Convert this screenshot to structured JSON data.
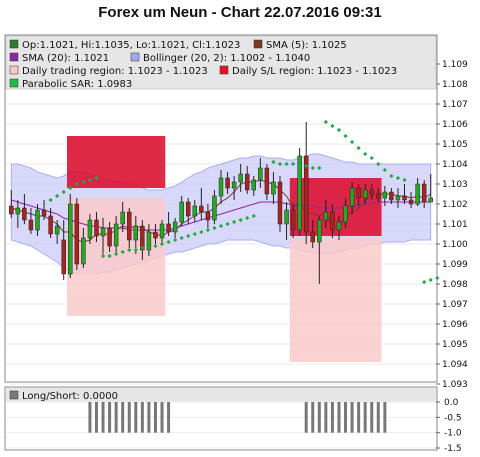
{
  "title": "Forex um Neun - Chart 22.07.2016 09:31",
  "legend": [
    {
      "text": "Op:1.1021, Hi:1.1035, Lo:1.1021, Cl:1.1023",
      "swatch": "#2e7d32"
    },
    {
      "text": "SMA (5): 1.1025",
      "swatch": "#7b3a22"
    },
    {
      "text": "SMA (20): 1.1021",
      "swatch": "#8e24aa"
    },
    {
      "text": "Bollinger (20, 2): 1.1002 - 1.1040",
      "swatch": "#9fa8f0"
    },
    {
      "text": "Daily trading region: 1.1023 - 1.1023",
      "swatch": "#f8c8c8"
    },
    {
      "text": "Daily S/L region: 1.1023 - 1.1023",
      "swatch": "#ee1122"
    },
    {
      "text": "Parabolic SAR: 1.0983",
      "swatch": "#22bb44"
    }
  ],
  "lower_panel": {
    "label": "Long/Short: 0.0000",
    "swatch": "#777777"
  },
  "colors": {
    "up": "#22aa22",
    "down": "#aa2222",
    "bollinger": "#c8c8f8",
    "sma5": "#7b3a22",
    "sma20": "#8e24aa",
    "sar": "#22aa44",
    "sl_region": "#dd1133",
    "trading_region": "#f9caca"
  },
  "chart_data": [
    {
      "type": "candlestick",
      "ylim": [
        1.093,
        1.109
      ],
      "y_ticks": [
        "1.093",
        "1.094",
        "1.095",
        "1.096",
        "1.097",
        "1.098",
        "1.099",
        "1.100",
        "1.101",
        "1.102",
        "1.103",
        "1.104",
        "1.105",
        "1.106",
        "1.107",
        "1.108",
        "1.109"
      ],
      "candles": [
        [
          1.1019,
          1.1027,
          1.1013,
          1.1015
        ],
        [
          1.1015,
          1.1022,
          1.1008,
          1.1018
        ],
        [
          1.1018,
          1.1025,
          1.101,
          1.1012
        ],
        [
          1.1012,
          1.1018,
          1.1005,
          1.1007
        ],
        [
          1.1007,
          1.102,
          1.1004,
          1.1017
        ],
        [
          1.1017,
          1.1022,
          1.1012,
          1.1014
        ],
        [
          1.1014,
          1.1018,
          1.1003,
          1.1005
        ],
        [
          1.1005,
          1.1012,
          1.1,
          1.1009
        ],
        [
          1.1002,
          1.1012,
          1.0982,
          1.0985
        ],
        [
          1.0985,
          1.1025,
          1.0983,
          1.102
        ],
        [
          1.102,
          1.1023,
          1.0987,
          1.099
        ],
        [
          1.099,
          1.1008,
          1.0988,
          1.1003
        ],
        [
          1.1003,
          1.1015,
          1.1,
          1.1012
        ],
        [
          1.1012,
          1.1016,
          1.1001,
          1.1004
        ],
        [
          1.1004,
          1.1013,
          1.0995,
          1.1008
        ],
        [
          1.1008,
          1.1011,
          1.0996,
          1.0999
        ],
        [
          1.0999,
          1.1014,
          1.0995,
          1.101
        ],
        [
          1.101,
          1.1021,
          1.1006,
          1.1016
        ],
        [
          1.1016,
          1.1018,
          1.0998,
          1.1002
        ],
        [
          1.1002,
          1.1014,
          1.0995,
          1.1009
        ],
        [
          1.1009,
          1.1012,
          1.0992,
          1.0997
        ],
        [
          1.0997,
          1.101,
          1.0994,
          1.1006
        ],
        [
          1.1006,
          1.101,
          1.1,
          1.1003
        ],
        [
          1.1003,
          1.1012,
          1.1,
          1.101
        ],
        [
          1.101,
          1.1016,
          1.1004,
          1.1006
        ],
        [
          1.1006,
          1.1013,
          1.1003,
          1.1011
        ],
        [
          1.1011,
          1.1024,
          1.1009,
          1.1021
        ],
        [
          1.1021,
          1.1023,
          1.101,
          1.1014
        ],
        [
          1.1014,
          1.1022,
          1.1011,
          1.1019
        ],
        [
          1.1019,
          1.1028,
          1.1012,
          1.1016
        ],
        [
          1.1016,
          1.102,
          1.1008,
          1.1012
        ],
        [
          1.1012,
          1.1027,
          1.101,
          1.1024
        ],
        [
          1.1024,
          1.1037,
          1.102,
          1.1033
        ],
        [
          1.1033,
          1.1036,
          1.1025,
          1.1028
        ],
        [
          1.1028,
          1.1034,
          1.1022,
          1.1031
        ],
        [
          1.1031,
          1.104,
          1.1026,
          1.1035
        ],
        [
          1.1035,
          1.1039,
          1.1025,
          1.1027
        ],
        [
          1.1027,
          1.1034,
          1.1024,
          1.1032
        ],
        [
          1.1032,
          1.1043,
          1.1028,
          1.1038
        ],
        [
          1.1038,
          1.104,
          1.1022,
          1.1025
        ],
        [
          1.1025,
          1.1036,
          1.102,
          1.1031
        ],
        [
          1.1031,
          1.1034,
          1.1006,
          1.101
        ],
        [
          1.101,
          1.1021,
          1.1002,
          1.1017
        ],
        [
          1.1017,
          1.102,
          1.1003,
          1.1007
        ],
        [
          1.1007,
          1.1048,
          1.1004,
          1.1044
        ],
        [
          1.1044,
          1.1061,
          1.1,
          1.1006
        ],
        [
          1.1006,
          1.1012,
          1.0998,
          1.1001
        ],
        [
          1.1001,
          1.1014,
          1.098,
          1.1012
        ],
        [
          1.1012,
          1.1022,
          1.1008,
          1.1016
        ],
        [
          1.1016,
          1.102,
          1.1003,
          1.1007
        ],
        [
          1.1007,
          1.1014,
          1.1002,
          1.1011
        ],
        [
          1.1011,
          1.1023,
          1.1008,
          1.1019
        ],
        [
          1.1019,
          1.1031,
          1.1015,
          1.1028
        ],
        [
          1.1028,
          1.103,
          1.1019,
          1.1023
        ],
        [
          1.1023,
          1.103,
          1.102,
          1.1027
        ],
        [
          1.1027,
          1.103,
          1.1022,
          1.1025
        ],
        [
          1.1025,
          1.1028,
          1.1021,
          1.1023
        ],
        [
          1.1023,
          1.1029,
          1.1019,
          1.1026
        ],
        [
          1.1026,
          1.1028,
          1.102,
          1.1022
        ],
        [
          1.1022,
          1.1028,
          1.1018,
          1.1024
        ],
        [
          1.1024,
          1.103,
          1.102,
          1.1022
        ],
        [
          1.1022,
          1.1026,
          1.1018,
          1.102
        ],
        [
          1.102,
          1.1033,
          1.1019,
          1.103
        ],
        [
          1.103,
          1.1032,
          1.1018,
          1.1021
        ],
        [
          1.1021,
          1.1035,
          1.1021,
          1.1023
        ]
      ],
      "sma5": [
        1.1018,
        1.1017,
        1.1016,
        1.1015,
        1.1014,
        1.1014,
        1.1012,
        1.101,
        1.1006,
        1.1006,
        1.1002,
        1.1001,
        1.1002,
        1.1005,
        1.1005,
        1.1005,
        1.1007,
        1.1009,
        1.1008,
        1.1009,
        1.1008,
        1.1006,
        1.1005,
        1.1004,
        1.1006,
        1.1007,
        1.101,
        1.1012,
        1.1014,
        1.1016,
        1.1016,
        1.1018,
        1.1021,
        1.1023,
        1.1026,
        1.103,
        1.1031,
        1.1031,
        1.1032,
        1.1031,
        1.103,
        1.1027,
        1.1024,
        1.1018,
        1.1021,
        1.1015,
        1.1015,
        1.1014,
        1.1016,
        1.1008,
        1.101,
        1.1013,
        1.1016,
        1.1018,
        1.1022,
        1.1024,
        1.1025,
        1.1025,
        1.1025,
        1.1024,
        1.1024,
        1.1023,
        1.1024,
        1.1023,
        1.1025
      ],
      "sma20": [
        1.1022,
        1.1021,
        1.102,
        1.1019,
        1.1018,
        1.1017,
        1.1016,
        1.1015,
        1.1013,
        1.1012,
        1.1011,
        1.101,
        1.1009,
        1.1009,
        1.1008,
        1.1008,
        1.1008,
        1.1008,
        1.1007,
        1.1007,
        1.1007,
        1.1007,
        1.1007,
        1.1007,
        1.1007,
        1.1008,
        1.1009,
        1.101,
        1.1011,
        1.1012,
        1.1013,
        1.1014,
        1.1015,
        1.1016,
        1.1017,
        1.1018,
        1.1019,
        1.102,
        1.1021,
        1.1021,
        1.1021,
        1.1021,
        1.102,
        1.102,
        1.102,
        1.1019,
        1.1019,
        1.1018,
        1.1018,
        1.1018,
        1.1018,
        1.1018,
        1.1019,
        1.1019,
        1.102,
        1.102,
        1.1021,
        1.1021,
        1.1021,
        1.1021,
        1.1021,
        1.1021,
        1.1021,
        1.1021,
        1.1021
      ],
      "bollinger_upper": [
        1.104,
        1.104,
        1.1039,
        1.1038,
        1.1036,
        1.1035,
        1.1034,
        1.1033,
        1.1034,
        1.1036,
        1.1036,
        1.1036,
        1.1035,
        1.1034,
        1.1033,
        1.1032,
        1.1031,
        1.1031,
        1.103,
        1.1029,
        1.1028,
        1.1027,
        1.1027,
        1.1027,
        1.1028,
        1.1029,
        1.1031,
        1.1033,
        1.1035,
        1.1036,
        1.1038,
        1.1039,
        1.104,
        1.1041,
        1.1042,
        1.1043,
        1.1043,
        1.1044,
        1.1044,
        1.1043,
        1.1043,
        1.1043,
        1.1042,
        1.1042,
        1.1043,
        1.1044,
        1.1045,
        1.1045,
        1.1044,
        1.1043,
        1.1042,
        1.1041,
        1.1041,
        1.104,
        1.104,
        1.104,
        1.104,
        1.104,
        1.104,
        1.104,
        1.104,
        1.104,
        1.104,
        1.104,
        1.104
      ],
      "bollinger_lower": [
        1.1002,
        1.1001,
        1.1,
        1.0999,
        1.0997,
        1.0995,
        1.0993,
        1.0991,
        1.0988,
        1.0986,
        1.0985,
        1.0985,
        1.0985,
        1.0985,
        1.0986,
        1.0986,
        1.0987,
        1.0988,
        1.0989,
        1.099,
        1.0991,
        1.0992,
        1.0993,
        1.0994,
        1.0995,
        1.0996,
        1.0996,
        1.0997,
        1.0998,
        1.0999,
        1.1,
        1.1,
        1.1001,
        1.1002,
        1.1002,
        1.1002,
        1.1002,
        1.1002,
        1.1001,
        1.1,
        1.0999,
        1.0999,
        1.0998,
        1.0998,
        1.0997,
        1.0996,
        1.0996,
        1.0995,
        1.0995,
        1.0995,
        1.0996,
        1.0997,
        1.0998,
        1.0998,
        1.0999,
        1.1,
        1.1,
        1.1001,
        1.1001,
        1.1001,
        1.1001,
        1.1002,
        1.1002,
        1.1002,
        1.1002
      ],
      "sar": [
        [
          6,
          1.1022
        ],
        [
          7,
          1.1024
        ],
        [
          8,
          1.1026
        ],
        [
          9,
          1.1028
        ],
        [
          10,
          1.103
        ],
        [
          11,
          1.1031
        ],
        [
          12,
          1.1032
        ],
        [
          13,
          1.1033
        ],
        [
          14,
          1.0994
        ],
        [
          15,
          1.0994
        ],
        [
          16,
          1.0995
        ],
        [
          17,
          1.0996
        ],
        [
          18,
          1.0997
        ],
        [
          19,
          1.0997
        ],
        [
          20,
          1.0998
        ],
        [
          21,
          1.0998
        ],
        [
          22,
          1.0999
        ],
        [
          23,
          1.1
        ],
        [
          24,
          1.1001
        ],
        [
          25,
          1.1002
        ],
        [
          26,
          1.1003
        ],
        [
          27,
          1.1004
        ],
        [
          28,
          1.1005
        ],
        [
          29,
          1.1006
        ],
        [
          30,
          1.1007
        ],
        [
          31,
          1.1008
        ],
        [
          32,
          1.1009
        ],
        [
          33,
          1.101
        ],
        [
          34,
          1.1011
        ],
        [
          35,
          1.1012
        ],
        [
          36,
          1.1013
        ],
        [
          37,
          1.1014
        ],
        [
          40,
          1.1041
        ],
        [
          41,
          1.104
        ],
        [
          42,
          1.104
        ],
        [
          43,
          1.104
        ],
        [
          44,
          1.1039
        ],
        [
          45,
          1.1039
        ],
        [
          46,
          1.1038
        ],
        [
          47,
          1.1038
        ],
        [
          48,
          1.1061
        ],
        [
          49,
          1.1059
        ],
        [
          50,
          1.1057
        ],
        [
          51,
          1.1054
        ],
        [
          52,
          1.1051
        ],
        [
          53,
          1.1048
        ],
        [
          54,
          1.1045
        ],
        [
          55,
          1.1043
        ],
        [
          56,
          1.104
        ],
        [
          57,
          1.1037
        ],
        [
          58,
          1.1034
        ],
        [
          59,
          1.1033
        ],
        [
          60,
          1.1032
        ],
        [
          63,
          1.0981
        ],
        [
          64,
          1.0982
        ],
        [
          65,
          1.0983
        ]
      ],
      "regions": [
        {
          "kind": "sl",
          "x_from": 9,
          "x_to": 23,
          "y_low": 1.1028,
          "y_high": 1.1054
        },
        {
          "kind": "sl",
          "x_from": 43,
          "x_to": 56,
          "y_low": 1.1004,
          "y_high": 1.1033
        },
        {
          "kind": "trading",
          "x_from": 9,
          "x_to": 23,
          "y_low": 1.0964,
          "y_high": 1.1023
        },
        {
          "kind": "trading",
          "x_from": 43,
          "x_to": 56,
          "y_low": 1.0941,
          "y_high": 1.1003
        }
      ]
    },
    {
      "type": "bar",
      "ylim": [
        -1.5,
        0.0
      ],
      "y_ticks": [
        "0.0",
        "-0.5",
        "-1.0",
        "-1.5"
      ],
      "bars": [
        {
          "x_from": 12,
          "x_to": 24,
          "value": -1.0
        },
        {
          "x_from": 45,
          "x_to": 57,
          "value": -1.0
        }
      ]
    }
  ]
}
